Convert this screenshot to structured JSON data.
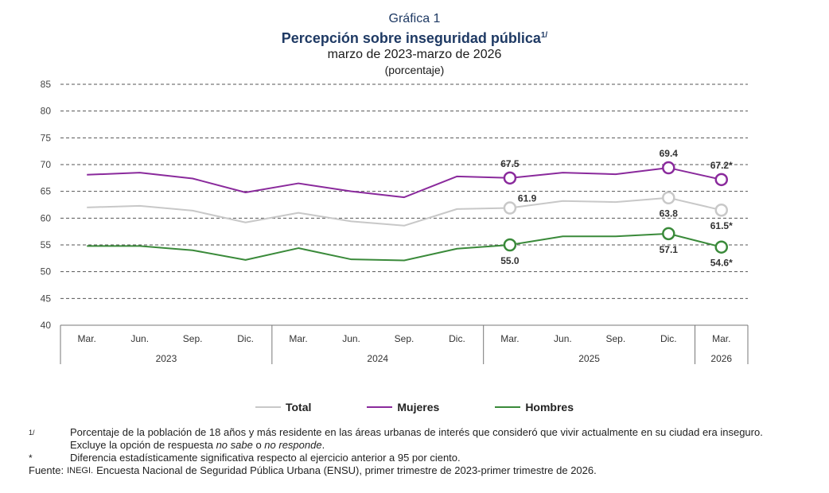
{
  "header": {
    "kicker": "Gráfica 1",
    "title": "Percepción sobre inseguridad pública",
    "title_sup": "1/",
    "subtitle": "marzo de 2023-marzo de 2026",
    "unit": "(porcentaje)"
  },
  "chart_data": {
    "type": "line",
    "ylim": [
      40,
      85
    ],
    "yticks": [
      "85",
      "80",
      "75",
      "70",
      "65",
      "60",
      "55",
      "50",
      "45",
      "40"
    ],
    "x_labels": [
      "Mar.",
      "Jun.",
      "Sep.",
      "Dic.",
      "Mar.",
      "Jun.",
      "Sep.",
      "Dic.",
      "Mar.",
      "Jun.",
      "Sep.",
      "Dic.",
      "Mar."
    ],
    "years": [
      "2023",
      "2024",
      "2025",
      "2026"
    ],
    "grid": "horizontal dashed",
    "series": [
      {
        "name": "Mujeres",
        "color": "#8a2a9c",
        "values": [
          68.1,
          68.5,
          67.4,
          64.8,
          66.5,
          65.0,
          63.9,
          67.8,
          67.5,
          68.5,
          68.2,
          69.4,
          67.2
        ],
        "markers": [
          {
            "i": 8,
            "label": "67.5",
            "pos": "above"
          },
          {
            "i": 11,
            "label": "69.4",
            "pos": "above"
          },
          {
            "i": 12,
            "label": "67.2*",
            "pos": "above"
          }
        ]
      },
      {
        "name": "Total",
        "color": "#c8c8c8",
        "values": [
          62.0,
          62.3,
          61.4,
          59.2,
          61.0,
          59.4,
          58.6,
          61.7,
          61.9,
          63.2,
          63.0,
          63.8,
          61.5
        ],
        "markers": [
          {
            "i": 8,
            "label": "61.9",
            "pos": "above-right"
          },
          {
            "i": 11,
            "label": "63.8",
            "pos": "below"
          },
          {
            "i": 12,
            "label": "61.5*",
            "pos": "below"
          }
        ]
      },
      {
        "name": "Hombres",
        "color": "#3a8a3a",
        "values": [
          54.8,
          54.8,
          54.0,
          52.2,
          54.4,
          52.3,
          52.1,
          54.3,
          55.0,
          56.6,
          56.6,
          57.1,
          54.6
        ],
        "markers": [
          {
            "i": 8,
            "label": "55.0",
            "pos": "below"
          },
          {
            "i": 11,
            "label": "57.1",
            "pos": "below"
          },
          {
            "i": 12,
            "label": "54.6*",
            "pos": "below"
          }
        ]
      }
    ]
  },
  "legend": [
    {
      "label": "Total",
      "color": "#c8c8c8"
    },
    {
      "label": "Mujeres",
      "color": "#8a2a9c"
    },
    {
      "label": "Hombres",
      "color": "#3a8a3a"
    }
  ],
  "notes": {
    "n1_mark": "1/",
    "n1_text_a": "Porcentaje de la población de 18 años y más residente en las áreas urbanas de interés que consideró que vivir actualmente en su ciudad era inseguro. Excluye la opción de respuesta ",
    "n1_em1": "no sabe",
    "n1_mid": " o ",
    "n1_em2": "no responde",
    "n1_end": ".",
    "star_mark": "*",
    "star_text": "Diferencia estadísticamente significativa respecto al ejercicio anterior a 95 por ciento.",
    "source_label": "Fuente:",
    "source_org": "INEGI.",
    "source_text": "Encuesta Nacional de Seguridad Pública Urbana (ENSU), primer trimestre de 2023-primer trimestre de 2026."
  }
}
